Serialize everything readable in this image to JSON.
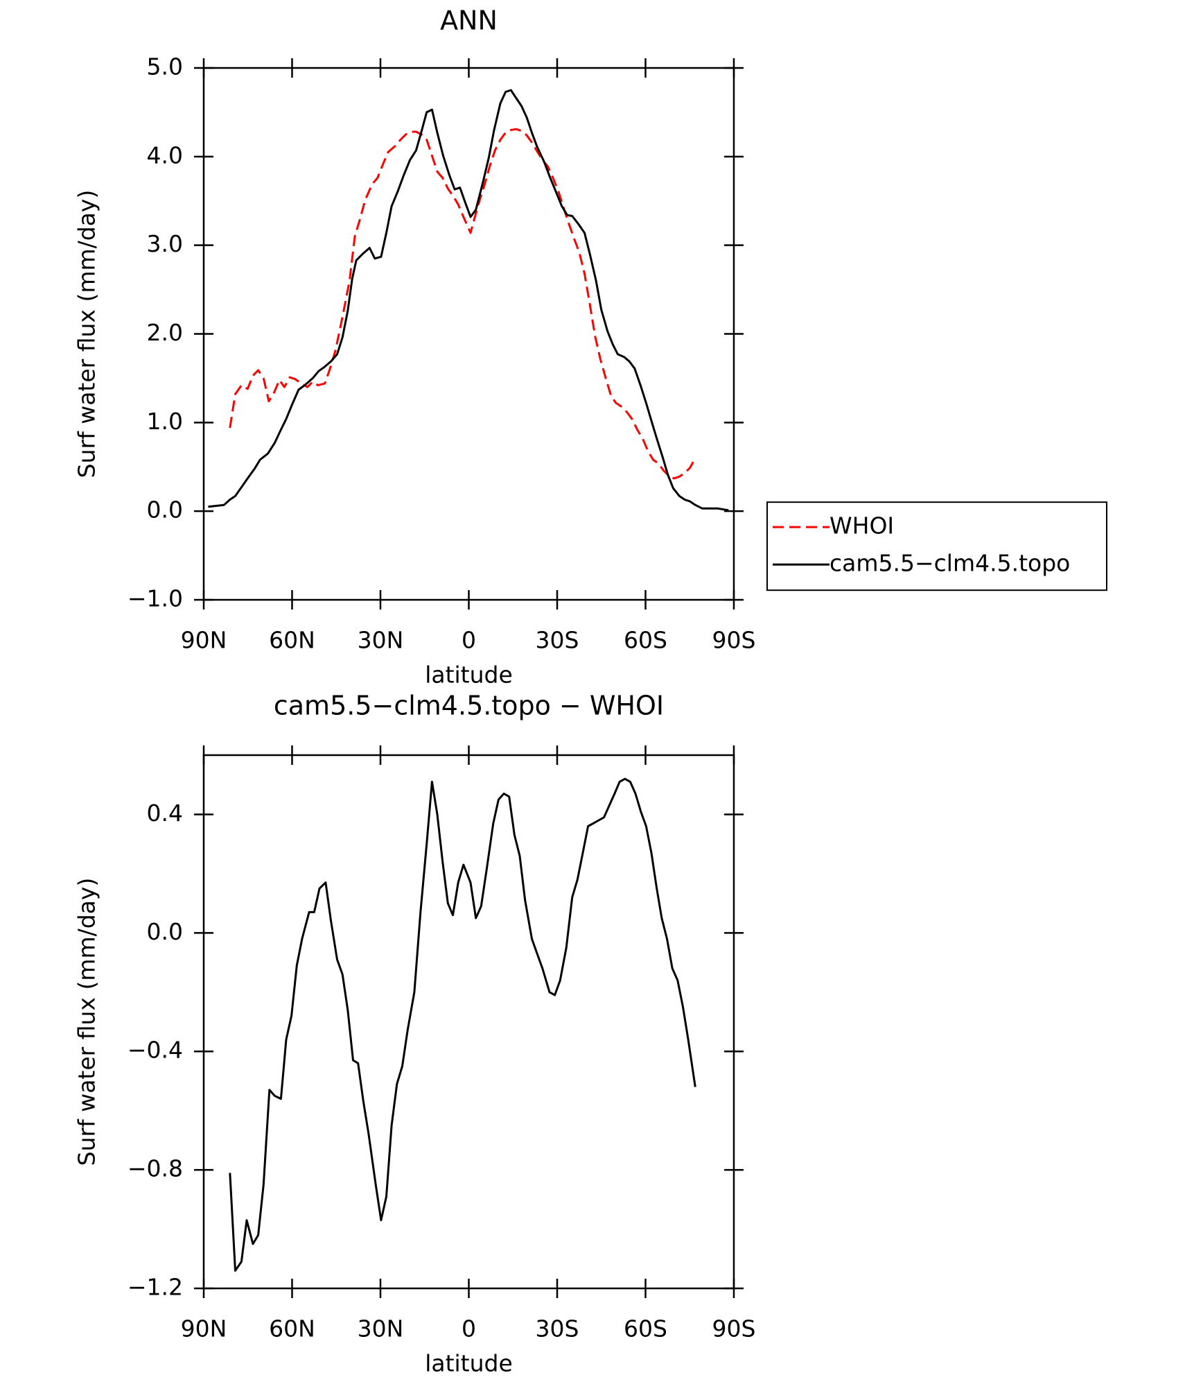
{
  "chart_data": [
    {
      "type": "line",
      "title": "ANN",
      "xlabel": "latitude",
      "ylabel": "Surf water flux (mm/day)",
      "xlim": [
        90,
        -90
      ],
      "xticks": [
        {
          "value": 90,
          "label": "90N"
        },
        {
          "value": 60,
          "label": "60N"
        },
        {
          "value": 30,
          "label": "30N"
        },
        0,
        {
          "value": -30,
          "label": "30S"
        },
        {
          "value": -60,
          "label": "60S"
        },
        {
          "value": -90,
          "label": "90S"
        }
      ],
      "ylim": [
        -1,
        5
      ],
      "yticks": [
        {
          "value": -1,
          "label": "−1.0"
        },
        {
          "value": 0,
          "label": "0.0"
        },
        {
          "value": 1,
          "label": "1.0"
        },
        {
          "value": 2,
          "label": "2.0"
        },
        {
          "value": 3,
          "label": "3.0"
        },
        {
          "value": 4,
          "label": "4.0"
        },
        {
          "value": 5,
          "label": "5.0"
        }
      ],
      "legend": "outside-right",
      "series": [
        {
          "name": "WHOI",
          "color": "#ff0000",
          "dashed": true,
          "x": [
            81.1,
            79.3,
            77.2,
            75.1,
            73.3,
            71.5,
            69.7,
            67.9,
            66.1,
            64.3,
            62.6,
            60.8,
            59.0,
            57.2,
            54.8,
            53.0,
            51.2,
            48.9,
            47.1,
            45.3,
            42.9,
            40.5,
            38.7,
            36.9,
            35.2,
            32.8,
            31.0,
            29.2,
            27.4,
            25.0,
            23.2,
            21.4,
            19.7,
            17.9,
            16.1,
            14.3,
            12.5,
            10.7,
            8.9,
            7.1,
            5.4,
            3.6,
            1.8,
            -0.6,
            -1.8,
            -3.6,
            -5.4,
            -7.1,
            -8.9,
            -10.7,
            -12.5,
            -14.3,
            -16.1,
            -17.9,
            -19.7,
            -21.4,
            -23.2,
            -25.0,
            -26.8,
            -28.6,
            -30.4,
            -32.2,
            -34.0,
            -35.7,
            -37.5,
            -39.3,
            -41.1,
            -42.9,
            -44.7,
            -46.5,
            -48.3,
            -50.0,
            -51.8,
            -53.6,
            -55.4,
            -57.2,
            -59.0,
            -60.8,
            -62.6,
            -64.3,
            -66.1,
            -67.9,
            -69.7,
            -71.5,
            -73.3,
            -75.1,
            -76.9
          ],
          "values": [
            0.94,
            1.32,
            1.42,
            1.38,
            1.53,
            1.59,
            1.5,
            1.24,
            1.34,
            1.48,
            1.4,
            1.51,
            1.49,
            1.45,
            1.4,
            1.46,
            1.42,
            1.44,
            1.61,
            1.81,
            2.19,
            2.6,
            3.1,
            3.3,
            3.51,
            3.69,
            3.76,
            3.91,
            4.05,
            4.12,
            4.19,
            4.25,
            4.28,
            4.28,
            4.25,
            4.19,
            4.01,
            3.83,
            3.76,
            3.64,
            3.56,
            3.46,
            3.32,
            3.14,
            3.29,
            3.5,
            3.69,
            3.89,
            4.07,
            4.19,
            4.27,
            4.3,
            4.31,
            4.29,
            4.24,
            4.16,
            4.06,
            3.96,
            3.89,
            3.76,
            3.61,
            3.42,
            3.24,
            3.08,
            2.92,
            2.68,
            2.33,
            1.97,
            1.71,
            1.5,
            1.3,
            1.22,
            1.18,
            1.12,
            1.04,
            0.92,
            0.82,
            0.68,
            0.58,
            0.54,
            0.46,
            0.4,
            0.37,
            0.39,
            0.43,
            0.49,
            0.6
          ]
        },
        {
          "name": "cam5.5−clm4.5.topo",
          "color": "#000000",
          "dashed": false,
          "x": [
            88.5,
            83.1,
            81.1,
            79.3,
            77.2,
            75.1,
            72.7,
            70.9,
            68.2,
            65.9,
            63.8,
            62.0,
            59.9,
            57.8,
            55.4,
            53.0,
            51.0,
            48.9,
            46.8,
            44.7,
            42.9,
            41.1,
            39.6,
            38.2,
            36.1,
            33.7,
            31.9,
            29.8,
            28.0,
            26.2,
            24.1,
            22.1,
            20.0,
            17.9,
            16.1,
            14.3,
            12.5,
            10.7,
            8.7,
            6.6,
            4.8,
            3.0,
            1.2,
            -0.6,
            -2.4,
            -4.8,
            -6.8,
            -8.6,
            -10.7,
            -12.5,
            -14.3,
            -16.1,
            -17.9,
            -19.7,
            -21.4,
            -23.2,
            -25.6,
            -27.4,
            -29.5,
            -31.6,
            -33.4,
            -35.1,
            -37.2,
            -39.3,
            -41.1,
            -43.2,
            -45.0,
            -47.1,
            -48.9,
            -50.6,
            -52.7,
            -54.5,
            -56.3,
            -58.4,
            -60.2,
            -62.0,
            -63.8,
            -65.8,
            -67.6,
            -69.4,
            -71.5,
            -73.3,
            -75.1,
            -76.9,
            -79.3,
            -81.0,
            -84.6,
            -88.2
          ],
          "values": [
            0.05,
            0.07,
            0.13,
            0.17,
            0.27,
            0.37,
            0.48,
            0.58,
            0.65,
            0.77,
            0.92,
            1.04,
            1.21,
            1.37,
            1.43,
            1.5,
            1.58,
            1.63,
            1.69,
            1.77,
            1.96,
            2.26,
            2.62,
            2.83,
            2.9,
            2.97,
            2.85,
            2.87,
            3.14,
            3.44,
            3.61,
            3.79,
            3.96,
            4.07,
            4.28,
            4.5,
            4.53,
            4.27,
            4.01,
            3.79,
            3.63,
            3.65,
            3.48,
            3.32,
            3.4,
            3.71,
            3.99,
            4.3,
            4.6,
            4.73,
            4.75,
            4.66,
            4.57,
            4.44,
            4.27,
            4.11,
            3.94,
            3.78,
            3.61,
            3.44,
            3.34,
            3.33,
            3.24,
            3.14,
            2.9,
            2.6,
            2.27,
            2.03,
            1.88,
            1.77,
            1.74,
            1.69,
            1.61,
            1.41,
            1.22,
            1.02,
            0.82,
            0.61,
            0.41,
            0.26,
            0.17,
            0.13,
            0.11,
            0.07,
            0.03,
            0.03,
            0.03,
            0.01
          ]
        }
      ]
    },
    {
      "type": "line",
      "title": "cam5.5−clm4.5.topo − WHOI",
      "xlabel": "latitude",
      "ylabel": "Surf water flux (mm/day)",
      "xlim": [
        90,
        -90
      ],
      "xticks": [
        {
          "value": 90,
          "label": "90N"
        },
        {
          "value": 60,
          "label": "60N"
        },
        {
          "value": 30,
          "label": "30N"
        },
        0,
        {
          "value": -30,
          "label": "30S"
        },
        {
          "value": -60,
          "label": "60S"
        },
        {
          "value": -90,
          "label": "90S"
        }
      ],
      "ylim": [
        -1.2,
        0.6
      ],
      "yticks": [
        {
          "value": -1.2,
          "label": "−1.2"
        },
        {
          "value": -0.8,
          "label": "−0.8"
        },
        {
          "value": -0.4,
          "label": "−0.4"
        },
        {
          "value": 0,
          "label": "0.0"
        },
        0.4
      ],
      "color": "#000000",
      "x": [
        81.1,
        79.3,
        77.2,
        75.4,
        73.3,
        71.5,
        69.7,
        67.7,
        65.9,
        63.8,
        62.0,
        60.2,
        58.4,
        56.6,
        54.2,
        52.5,
        50.7,
        48.6,
        46.8,
        44.7,
        42.9,
        41.1,
        39.3,
        37.6,
        35.8,
        34.0,
        31.6,
        29.8,
        28.0,
        26.2,
        24.4,
        22.6,
        20.8,
        18.5,
        16.4,
        14.3,
        12.5,
        10.7,
        8.9,
        7.1,
        5.4,
        3.6,
        1.8,
        -0.6,
        -2.4,
        -4.2,
        -6.0,
        -8.3,
        -10.1,
        -11.9,
        -13.7,
        -15.5,
        -17.3,
        -19.1,
        -21.4,
        -23.2,
        -25.0,
        -27.4,
        -29.2,
        -31.0,
        -33.1,
        -35.1,
        -36.9,
        -38.7,
        -40.5,
        -42.3,
        -44.1,
        -45.9,
        -47.7,
        -49.5,
        -51.2,
        -53.0,
        -54.8,
        -56.6,
        -58.4,
        -60.2,
        -62.0,
        -63.8,
        -65.5,
        -67.3,
        -69.1,
        -70.9,
        -72.7,
        -74.5,
        -76.9
      ],
      "values": [
        -0.81,
        -1.14,
        -1.11,
        -0.97,
        -1.05,
        -1.02,
        -0.85,
        -0.53,
        -0.55,
        -0.56,
        -0.36,
        -0.28,
        -0.11,
        -0.02,
        0.07,
        0.07,
        0.15,
        0.17,
        0.04,
        -0.09,
        -0.14,
        -0.26,
        -0.43,
        -0.44,
        -0.57,
        -0.68,
        -0.85,
        -0.97,
        -0.89,
        -0.65,
        -0.51,
        -0.45,
        -0.33,
        -0.2,
        0.07,
        0.3,
        0.51,
        0.4,
        0.24,
        0.1,
        0.06,
        0.17,
        0.23,
        0.17,
        0.05,
        0.09,
        0.21,
        0.37,
        0.45,
        0.47,
        0.46,
        0.33,
        0.26,
        0.11,
        -0.02,
        -0.07,
        -0.12,
        -0.2,
        -0.21,
        -0.16,
        -0.05,
        0.12,
        0.18,
        0.27,
        0.36,
        0.37,
        0.38,
        0.39,
        0.43,
        0.47,
        0.51,
        0.52,
        0.51,
        0.47,
        0.41,
        0.36,
        0.27,
        0.15,
        0.05,
        -0.02,
        -0.12,
        -0.16,
        -0.25,
        -0.36,
        -0.52
      ]
    }
  ]
}
